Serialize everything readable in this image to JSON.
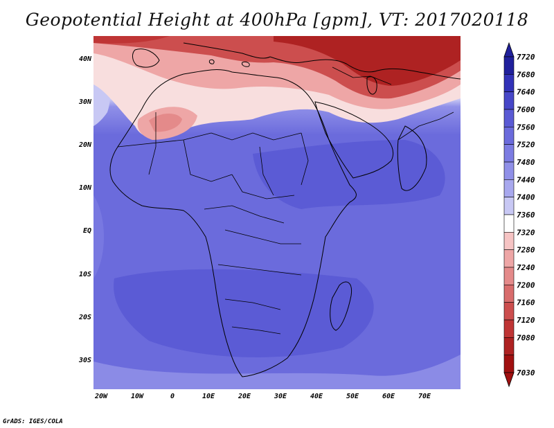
{
  "title": "Geopotential Height at 400hPa [gpm], VT: 2017020118",
  "credit": "GrADS: IGES/COLA",
  "lat_labels": [
    "40N",
    "30N",
    "20N",
    "10N",
    "EQ",
    "10S",
    "20S",
    "30S"
  ],
  "lon_labels": [
    "20W",
    "10W",
    "0",
    "10E",
    "20E",
    "30E",
    "40E",
    "50E",
    "60E",
    "70E"
  ],
  "colorbar": {
    "levels": [
      "7720",
      "7680",
      "7640",
      "7600",
      "7560",
      "7520",
      "7480",
      "7440",
      "7400",
      "7360",
      "7320",
      "7280",
      "7240",
      "7200",
      "7160",
      "7120",
      "7080",
      "7030"
    ],
    "colors": [
      "#20209c",
      "#3232b8",
      "#4747c8",
      "#5a5ad4",
      "#6b6bdc",
      "#7c7ce2",
      "#9090e8",
      "#a8a8ee",
      "#c8c8f4",
      "#ffffff",
      "#f6c4c4",
      "#eea6a6",
      "#e48a8a",
      "#d86c6c",
      "#cc4e4e",
      "#bf3535",
      "#ae2222",
      "#a01010"
    ]
  }
}
